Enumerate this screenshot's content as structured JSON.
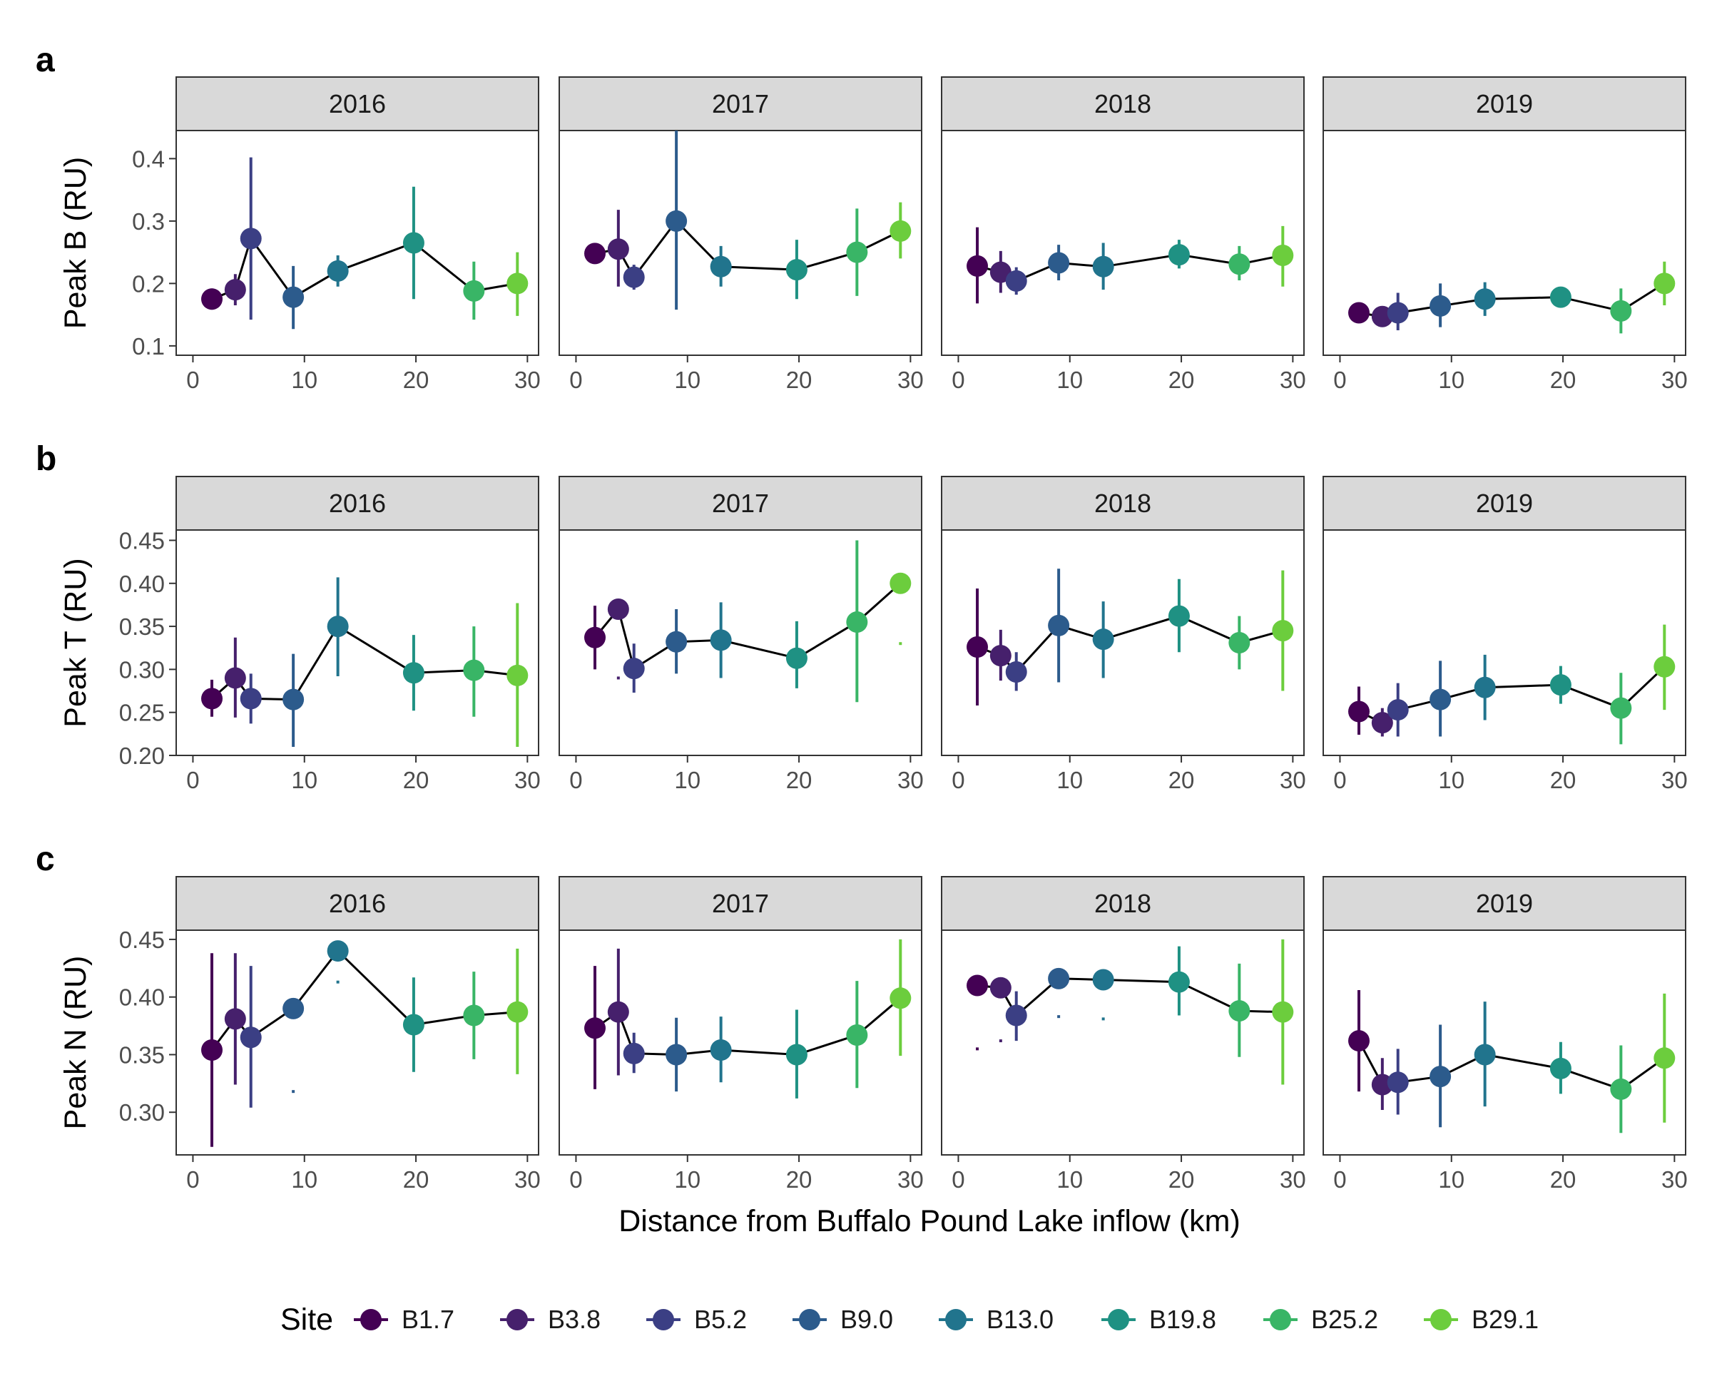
{
  "figure": {
    "xlabel": "Distance from Buffalo Pound Lake inflow (km)",
    "legend_title": "Site",
    "legend_position": "bottom",
    "grid": false
  },
  "chart_data": [
    {
      "type": "line",
      "panel_label": "a",
      "ylabel": "Peak B (RU)",
      "xlim": [
        -1.5,
        31
      ],
      "ylim": [
        0.085,
        0.445
      ],
      "xticks": [
        0,
        10,
        20,
        30
      ],
      "yticks": [
        0.1,
        0.2,
        0.3,
        0.4
      ],
      "ytick_labels": [
        "0.1",
        "0.2",
        "0.3",
        "0.4"
      ],
      "facets": [
        {
          "year": "2016",
          "x": [
            1.7,
            3.8,
            5.2,
            9.0,
            13.0,
            19.8,
            25.2,
            29.1
          ],
          "y": [
            0.175,
            0.19,
            0.272,
            0.178,
            0.22,
            0.265,
            0.188,
            0.2
          ],
          "lo": [
            0.158,
            0.165,
            0.142,
            0.127,
            0.195,
            0.175,
            0.142,
            0.148
          ],
          "hi": [
            0.192,
            0.215,
            0.402,
            0.228,
            0.245,
            0.355,
            0.235,
            0.25
          ]
        },
        {
          "year": "2017",
          "x": [
            1.7,
            3.8,
            5.2,
            9.0,
            13.0,
            19.8,
            25.2,
            29.1
          ],
          "y": [
            0.248,
            0.255,
            0.21,
            0.3,
            0.227,
            0.222,
            0.25,
            0.284
          ],
          "lo": [
            null,
            0.195,
            0.19,
            0.158,
            0.195,
            0.175,
            0.18,
            0.24
          ],
          "hi": [
            null,
            0.318,
            0.23,
            0.445,
            0.26,
            0.27,
            0.32,
            0.33
          ]
        },
        {
          "year": "2018",
          "x": [
            1.7,
            3.8,
            5.2,
            9.0,
            13.0,
            19.8,
            25.2,
            29.1
          ],
          "y": [
            0.228,
            0.218,
            0.204,
            0.233,
            0.227,
            0.246,
            0.231,
            0.245
          ],
          "lo": [
            0.168,
            0.185,
            0.182,
            0.205,
            0.19,
            0.224,
            0.205,
            0.195
          ],
          "hi": [
            0.29,
            0.252,
            0.226,
            0.262,
            0.265,
            0.27,
            0.26,
            0.292
          ]
        },
        {
          "year": "2019",
          "x": [
            1.7,
            3.8,
            5.2,
            9.0,
            13.0,
            19.8,
            25.2,
            29.1
          ],
          "y": [
            0.153,
            0.147,
            0.153,
            0.164,
            0.175,
            0.178,
            0.156,
            0.2
          ],
          "lo": [
            null,
            0.14,
            0.125,
            0.13,
            0.148,
            null,
            0.12,
            0.165
          ],
          "hi": [
            null,
            0.155,
            0.185,
            0.2,
            0.202,
            null,
            0.192,
            0.235
          ]
        }
      ]
    },
    {
      "type": "line",
      "panel_label": "b",
      "ylabel": "Peak T (RU)",
      "xlim": [
        -1.5,
        31
      ],
      "ylim": [
        0.2,
        0.462
      ],
      "xticks": [
        0,
        10,
        20,
        30
      ],
      "yticks": [
        0.2,
        0.25,
        0.3,
        0.35,
        0.4,
        0.45
      ],
      "ytick_labels": [
        "0.20",
        "0.25",
        "0.30",
        "0.35",
        "0.40",
        "0.45"
      ],
      "facets": [
        {
          "year": "2016",
          "x": [
            1.7,
            3.8,
            5.2,
            9.0,
            13.0,
            19.8,
            25.2,
            29.1
          ],
          "y": [
            0.266,
            0.29,
            0.266,
            0.265,
            0.35,
            0.296,
            0.299,
            0.293
          ],
          "lo": [
            0.245,
            0.244,
            0.237,
            0.21,
            0.292,
            0.252,
            0.245,
            0.21
          ],
          "hi": [
            0.288,
            0.337,
            0.295,
            0.318,
            0.407,
            0.34,
            0.35,
            0.377
          ]
        },
        {
          "year": "2017",
          "x": [
            1.7,
            3.8,
            5.2,
            9.0,
            13.0,
            19.8,
            25.2,
            29.1
          ],
          "y": [
            0.337,
            0.37,
            0.301,
            0.332,
            0.334,
            0.313,
            0.355,
            0.4
          ],
          "lo": [
            0.3,
            0.29,
            0.273,
            0.295,
            0.29,
            0.278,
            0.262,
            0.33
          ],
          "hi": [
            0.374,
            0.29,
            0.33,
            0.37,
            0.378,
            0.356,
            0.45,
            0.33
          ]
        },
        {
          "year": "2018",
          "x": [
            1.7,
            3.8,
            5.2,
            9.0,
            13.0,
            19.8,
            25.2,
            29.1
          ],
          "y": [
            0.326,
            0.316,
            0.297,
            0.351,
            0.335,
            0.362,
            0.331,
            0.345
          ],
          "lo": [
            0.258,
            0.287,
            0.275,
            0.285,
            0.29,
            0.32,
            0.3,
            0.275
          ],
          "hi": [
            0.394,
            0.346,
            0.32,
            0.417,
            0.379,
            0.405,
            0.362,
            0.415
          ]
        },
        {
          "year": "2019",
          "x": [
            1.7,
            3.8,
            5.2,
            9.0,
            13.0,
            19.8,
            25.2,
            29.1
          ],
          "y": [
            0.251,
            0.238,
            0.253,
            0.265,
            0.279,
            0.282,
            0.255,
            0.303
          ],
          "lo": [
            0.224,
            0.222,
            0.222,
            0.222,
            0.241,
            0.26,
            0.213,
            0.253
          ],
          "hi": [
            0.28,
            0.255,
            0.284,
            0.31,
            0.317,
            0.304,
            0.296,
            0.352
          ]
        }
      ]
    },
    {
      "type": "line",
      "panel_label": "c",
      "ylabel": "Peak N (RU)",
      "xlim": [
        -1.5,
        31
      ],
      "ylim": [
        0.263,
        0.458
      ],
      "xticks": [
        0,
        10,
        20,
        30
      ],
      "yticks": [
        0.3,
        0.35,
        0.4,
        0.45
      ],
      "ytick_labels": [
        "0.30",
        "0.35",
        "0.40",
        "0.45"
      ],
      "facets": [
        {
          "year": "2016",
          "x": [
            1.7,
            3.8,
            5.2,
            9.0,
            13.0,
            19.8,
            25.2,
            29.1
          ],
          "y": [
            0.354,
            0.381,
            0.365,
            0.39,
            0.44,
            0.376,
            0.384,
            0.387
          ],
          "lo": [
            0.27,
            0.324,
            0.304,
            0.318,
            0.413,
            0.335,
            0.346,
            0.333
          ],
          "hi": [
            0.438,
            0.438,
            0.427,
            0.318,
            0.413,
            0.417,
            0.422,
            0.442
          ]
        },
        {
          "year": "2017",
          "x": [
            1.7,
            3.8,
            5.2,
            9.0,
            13.0,
            19.8,
            25.2,
            29.1
          ],
          "y": [
            0.373,
            0.387,
            0.351,
            0.35,
            0.354,
            0.35,
            0.367,
            0.399
          ],
          "lo": [
            0.32,
            0.332,
            0.334,
            0.318,
            0.326,
            0.312,
            0.321,
            0.349
          ],
          "hi": [
            0.427,
            0.442,
            0.369,
            0.382,
            0.383,
            0.389,
            0.414,
            0.45
          ]
        },
        {
          "year": "2018",
          "x": [
            1.7,
            3.8,
            5.2,
            9.0,
            13.0,
            19.8,
            25.2,
            29.1
          ],
          "y": [
            0.41,
            0.408,
            0.384,
            0.416,
            0.415,
            0.413,
            0.388,
            0.387
          ],
          "lo": [
            0.355,
            0.362,
            0.362,
            0.383,
            0.381,
            0.384,
            0.348,
            0.324
          ],
          "hi": [
            0.355,
            0.362,
            0.405,
            0.383,
            0.381,
            0.444,
            0.429,
            0.45
          ]
        },
        {
          "year": "2019",
          "x": [
            1.7,
            3.8,
            5.2,
            9.0,
            13.0,
            19.8,
            25.2,
            29.1
          ],
          "y": [
            0.362,
            0.324,
            0.326,
            0.331,
            0.35,
            0.338,
            0.32,
            0.347
          ],
          "lo": [
            0.318,
            0.302,
            0.298,
            0.287,
            0.305,
            0.316,
            0.282,
            0.291
          ],
          "hi": [
            0.406,
            0.347,
            0.355,
            0.376,
            0.396,
            0.361,
            0.358,
            0.403
          ]
        }
      ]
    }
  ],
  "sites": [
    {
      "name": "B1.7",
      "color": "#440154"
    },
    {
      "name": "B3.8",
      "color": "#46206c"
    },
    {
      "name": "B5.2",
      "color": "#3b3f84"
    },
    {
      "name": "B9.0",
      "color": "#2c5b8c"
    },
    {
      "name": "B13.0",
      "color": "#21748d"
    },
    {
      "name": "B19.8",
      "color": "#1f9183"
    },
    {
      "name": "B25.2",
      "color": "#39b566"
    },
    {
      "name": "B29.1",
      "color": "#6ccd3d"
    }
  ]
}
